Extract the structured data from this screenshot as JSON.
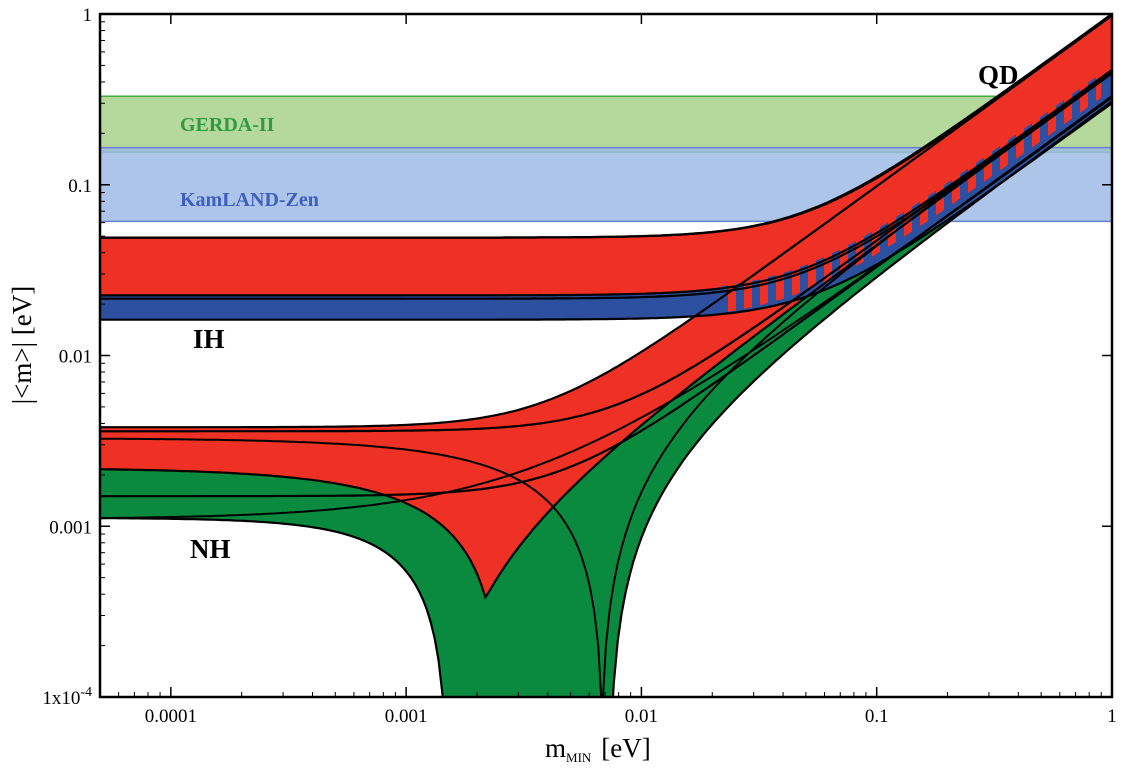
{
  "chart_data": {
    "type": "area",
    "xscale": "log",
    "yscale": "log",
    "xlim": [
      5e-05,
      1
    ],
    "ylim": [
      0.0001,
      1
    ],
    "xlabel_main": "m",
    "xlabel_sub": "MIN",
    "xlabel_unit": "[eV]",
    "ylabel": "|<m>| [eV]",
    "x_ticks": [
      {
        "value": 0.0001,
        "label": "0.0001"
      },
      {
        "value": 0.001,
        "label": "0.001"
      },
      {
        "value": 0.01,
        "label": "0.01"
      },
      {
        "value": 0.1,
        "label": "0.1"
      },
      {
        "value": 1,
        "label": "1"
      }
    ],
    "y_ticks": [
      {
        "value": 1,
        "label": "1"
      },
      {
        "value": 0.1,
        "label": "0.1"
      },
      {
        "value": 0.01,
        "label": "0.01"
      },
      {
        "value": 0.001,
        "label": "0.001"
      },
      {
        "value": 0.0001,
        "label": "1x10",
        "exp": "-4"
      }
    ],
    "experimental_limits": [
      {
        "name": "GERDA-II",
        "range": [
          0.155,
          0.33
        ],
        "color": "#a8d18c",
        "edge": "#3fae3f",
        "label_color": "#2f9a3f"
      },
      {
        "name": "KamLAND-Zen",
        "range": [
          0.061,
          0.165
        ],
        "color": "#9dbbe4",
        "edge": "#6a7fd0",
        "label_color": "#3f5fbf"
      }
    ],
    "region_labels": [
      "QD",
      "IH",
      "NH"
    ],
    "colors": {
      "red": "#ee3124",
      "green": "#0a8a3f",
      "blue": "#2c4fa0"
    },
    "ih_bands": {
      "red_total": {
        "low": 0.0215,
        "high": 0.049
      },
      "blue_total": {
        "low": 0.0162,
        "high": 0.0225
      }
    },
    "nh_curves": {
      "red_outer_upper_y0": 0.0038,
      "red_outer_lower_y0": 0.0022,
      "red_cancel_x": 0.0022,
      "red_cancel_y": 0.00036,
      "green_outer_upper_y0": 0.0036,
      "green_outer_lower_y0": 0.0011,
      "green_cancel_x1": 0.0015,
      "green_cancel_x2": 0.0075,
      "green_cancel2_x": 0.006,
      "green_cancel2_y": 0.00055
    }
  }
}
